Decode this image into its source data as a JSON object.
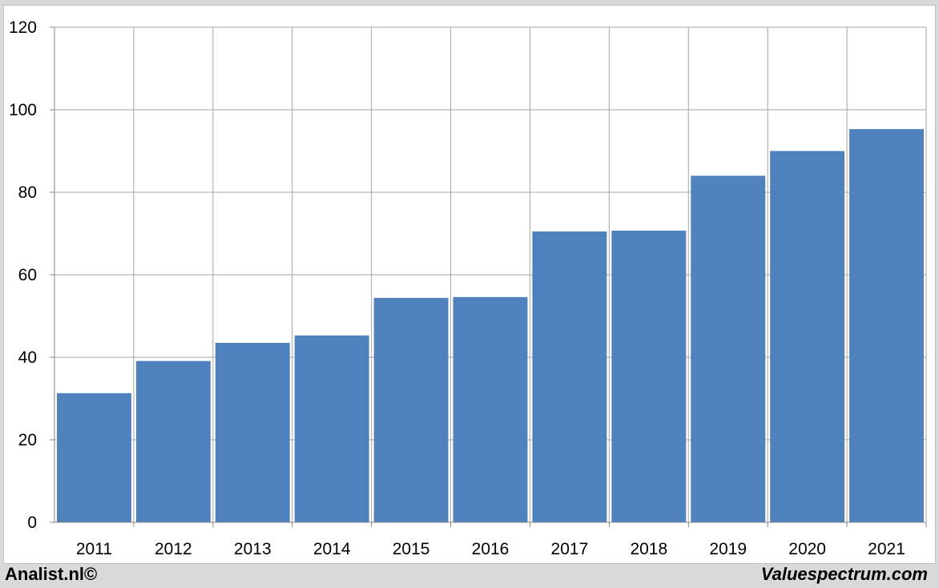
{
  "chart_data": {
    "type": "bar",
    "categories": [
      "2011",
      "2012",
      "2013",
      "2014",
      "2015",
      "2016",
      "2017",
      "2018",
      "2019",
      "2020",
      "2021"
    ],
    "values": [
      31.3,
      39.1,
      43.5,
      45.3,
      54.4,
      54.6,
      70.5,
      70.7,
      84.0,
      90.0,
      95.3
    ],
    "ylim": [
      0,
      120
    ],
    "yticks": [
      0,
      20,
      40,
      60,
      80,
      100,
      120
    ],
    "grid": true,
    "bar_color": "#4f81bd",
    "title": "",
    "xlabel": "",
    "ylabel": ""
  },
  "footer": {
    "left": "Analist.nl©",
    "right": "Valuespectrum.com"
  }
}
